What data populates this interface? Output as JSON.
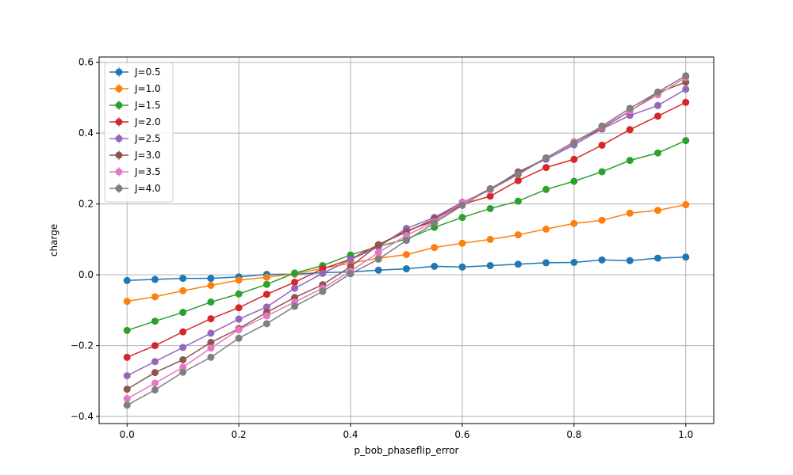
{
  "chart_data": {
    "type": "line",
    "title": "",
    "xlabel": "p_bob_phaseflip_error",
    "ylabel": "charge",
    "xlim": [
      -0.05,
      1.05
    ],
    "ylim": [
      -0.42,
      0.615
    ],
    "xticks": [
      0.0,
      0.2,
      0.4,
      0.6,
      0.8,
      1.0
    ],
    "xtick_labels": [
      "0.0",
      "0.2",
      "0.4",
      "0.6",
      "0.8",
      "1.0"
    ],
    "yticks": [
      -0.4,
      -0.2,
      0.0,
      0.2,
      0.4,
      0.6
    ],
    "ytick_labels": [
      "−0.4",
      "−0.2",
      "0.0",
      "0.2",
      "0.4",
      "0.6"
    ],
    "grid": true,
    "legend_position": "upper-left",
    "markers": "circle with error bars",
    "x": [
      0.0,
      0.05,
      0.1,
      0.15,
      0.2,
      0.25,
      0.3,
      0.35,
      0.4,
      0.45,
      0.5,
      0.55,
      0.6,
      0.65,
      0.7,
      0.75,
      0.8,
      0.85,
      0.9,
      0.95,
      1.0
    ],
    "series": [
      {
        "name": "J=0.5",
        "color": "#1f77b4",
        "values": [
          -0.016,
          -0.013,
          -0.01,
          -0.01,
          -0.006,
          0.001,
          0.002,
          0.006,
          0.008,
          0.013,
          0.017,
          0.024,
          0.022,
          0.026,
          0.03,
          0.034,
          0.035,
          0.042,
          0.04,
          0.047,
          0.05
        ]
      },
      {
        "name": "J=1.0",
        "color": "#ff7f0e",
        "values": [
          -0.075,
          -0.062,
          -0.045,
          -0.03,
          -0.015,
          -0.007,
          0.003,
          0.018,
          0.033,
          0.047,
          0.057,
          0.077,
          0.089,
          0.1,
          0.113,
          0.129,
          0.145,
          0.154,
          0.174,
          0.182,
          0.198
        ]
      },
      {
        "name": "J=1.5",
        "color": "#2ca02c",
        "values": [
          -0.157,
          -0.131,
          -0.106,
          -0.077,
          -0.054,
          -0.027,
          0.005,
          0.026,
          0.056,
          0.08,
          0.101,
          0.134,
          0.162,
          0.187,
          0.208,
          0.241,
          0.264,
          0.291,
          0.323,
          0.344,
          0.379
        ]
      },
      {
        "name": "J=2.0",
        "color": "#d62728",
        "values": [
          -0.233,
          -0.2,
          -0.161,
          -0.124,
          -0.093,
          -0.055,
          -0.021,
          0.017,
          0.044,
          0.085,
          0.124,
          0.152,
          0.199,
          0.222,
          0.266,
          0.303,
          0.326,
          0.366,
          0.41,
          0.448,
          0.487
        ]
      },
      {
        "name": "J=2.5",
        "color": "#9467bd",
        "values": [
          -0.285,
          -0.245,
          -0.205,
          -0.165,
          -0.125,
          -0.091,
          -0.038,
          0.004,
          0.043,
          0.079,
          0.131,
          0.162,
          0.205,
          0.24,
          0.291,
          0.326,
          0.367,
          0.412,
          0.45,
          0.478,
          0.524
        ]
      },
      {
        "name": "J=3.0",
        "color": "#8c564b",
        "values": [
          -0.323,
          -0.276,
          -0.24,
          -0.191,
          -0.152,
          -0.106,
          -0.064,
          -0.028,
          0.023,
          0.085,
          0.121,
          0.158,
          0.202,
          0.243,
          0.288,
          0.33,
          0.374,
          0.414,
          0.462,
          0.514,
          0.544
        ]
      },
      {
        "name": "J=3.5",
        "color": "#e377c2",
        "values": [
          -0.35,
          -0.306,
          -0.261,
          -0.207,
          -0.155,
          -0.116,
          -0.077,
          -0.038,
          0.01,
          0.063,
          0.111,
          0.15,
          0.204,
          0.239,
          0.284,
          0.33,
          0.376,
          0.417,
          0.463,
          0.508,
          0.557
        ]
      },
      {
        "name": "J=4.0",
        "color": "#7f7f7f",
        "values": [
          -0.368,
          -0.325,
          -0.275,
          -0.233,
          -0.179,
          -0.138,
          -0.089,
          -0.047,
          0.003,
          0.044,
          0.097,
          0.146,
          0.196,
          0.243,
          0.283,
          0.33,
          0.372,
          0.42,
          0.47,
          0.516,
          0.562
        ]
      }
    ]
  }
}
